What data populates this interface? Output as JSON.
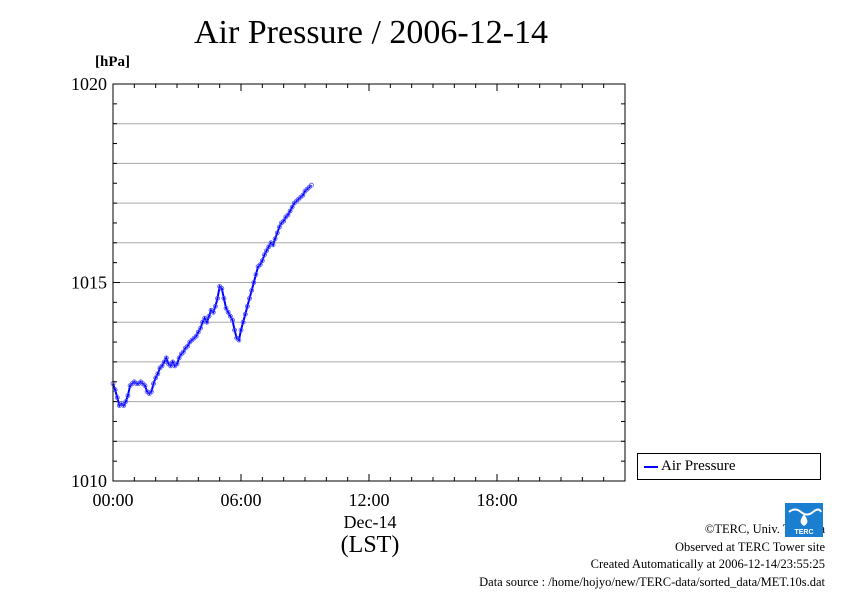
{
  "chart_data": {
    "type": "line",
    "title": "Air Pressure / 2006-12-14",
    "ylabel": "[hPa]",
    "xlabel": "Dec-14",
    "x_sublabel": "(LST)",
    "xlim": [
      0,
      24
    ],
    "ylim": [
      1010,
      1020
    ],
    "x_tick_values": [
      0,
      6,
      12,
      18
    ],
    "x_tick_labels": [
      "00:00",
      "06:00",
      "12:00",
      "18:00"
    ],
    "y_tick_values": [
      1010,
      1015,
      1020
    ],
    "y_tick_labels": [
      "1010",
      "1015",
      "1020"
    ],
    "grid": true,
    "legend": "right, below plot",
    "series": [
      {
        "name": "Air Pressure",
        "color": "#0000ff",
        "x": [
          0.0,
          0.1,
          0.2,
          0.3,
          0.4,
          0.5,
          0.6,
          0.7,
          0.8,
          0.9,
          1.0,
          1.1,
          1.2,
          1.3,
          1.4,
          1.5,
          1.6,
          1.7,
          1.8,
          1.9,
          2.0,
          2.1,
          2.2,
          2.3,
          2.4,
          2.5,
          2.6,
          2.7,
          2.8,
          2.9,
          3.0,
          3.1,
          3.2,
          3.3,
          3.4,
          3.5,
          3.6,
          3.7,
          3.8,
          3.9,
          4.0,
          4.1,
          4.2,
          4.3,
          4.4,
          4.5,
          4.6,
          4.7,
          4.8,
          4.9,
          5.0,
          5.1,
          5.2,
          5.3,
          5.4,
          5.5,
          5.6,
          5.7,
          5.8,
          5.9,
          6.0,
          6.1,
          6.2,
          6.3,
          6.4,
          6.5,
          6.6,
          6.7,
          6.8,
          6.9,
          7.0,
          7.1,
          7.2,
          7.3,
          7.4,
          7.5,
          7.6,
          7.7,
          7.8,
          7.9,
          8.0,
          8.1,
          8.2,
          8.3,
          8.4,
          8.5,
          8.6,
          8.7,
          8.8,
          8.9,
          9.0,
          9.1,
          9.2,
          9.3
        ],
        "y": [
          1012.45,
          1012.3,
          1012.1,
          1011.9,
          1011.95,
          1011.9,
          1012.0,
          1012.15,
          1012.4,
          1012.45,
          1012.5,
          1012.45,
          1012.45,
          1012.5,
          1012.45,
          1012.4,
          1012.25,
          1012.2,
          1012.25,
          1012.45,
          1012.6,
          1012.7,
          1012.85,
          1012.9,
          1013.0,
          1013.1,
          1012.95,
          1012.9,
          1013.0,
          1012.9,
          1012.95,
          1013.1,
          1013.2,
          1013.25,
          1013.35,
          1013.4,
          1013.5,
          1013.55,
          1013.6,
          1013.65,
          1013.75,
          1013.85,
          1014.0,
          1014.1,
          1014.0,
          1014.15,
          1014.3,
          1014.25,
          1014.4,
          1014.6,
          1014.9,
          1014.85,
          1014.6,
          1014.35,
          1014.25,
          1014.15,
          1014.05,
          1013.8,
          1013.6,
          1013.55,
          1013.8,
          1014.0,
          1014.2,
          1014.4,
          1014.6,
          1014.8,
          1015.0,
          1015.2,
          1015.4,
          1015.45,
          1015.55,
          1015.7,
          1015.8,
          1015.9,
          1016.0,
          1015.95,
          1016.1,
          1016.25,
          1016.4,
          1016.5,
          1016.55,
          1016.65,
          1016.7,
          1016.8,
          1016.9,
          1017.0,
          1017.05,
          1017.1,
          1017.15,
          1017.2,
          1017.3,
          1017.35,
          1017.4,
          1017.45
        ]
      }
    ]
  },
  "footer": {
    "copyright": "©TERC, Univ. Tsukuba",
    "site": "Observed at TERC Tower site",
    "created": "Created Automatically at 2006-12-14/23:55:25",
    "source": "Data source : /home/hojyo/new/TERC-data/sorted_data/MET.10s.dat"
  },
  "logo_text": "TERC"
}
